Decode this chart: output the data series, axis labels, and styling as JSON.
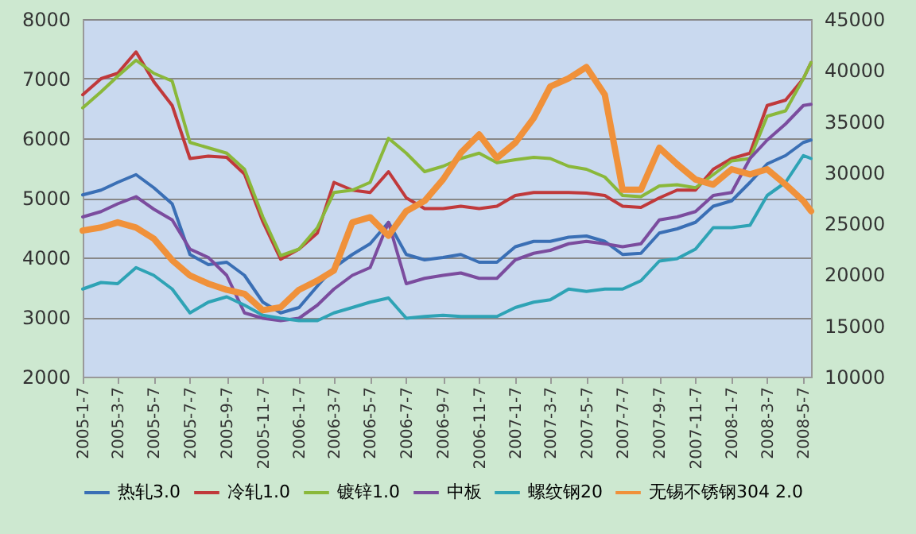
{
  "chart_data": {
    "type": "line",
    "x": [
      "2005-01-07",
      "2005-02-07",
      "2005-03-07",
      "2005-04-07",
      "2005-05-07",
      "2005-06-07",
      "2005-07-07",
      "2005-08-07",
      "2005-09-07",
      "2005-10-07",
      "2005-11-07",
      "2005-12-07",
      "2006-01-07",
      "2006-02-07",
      "2006-03-07",
      "2006-04-07",
      "2006-05-07",
      "2006-06-07",
      "2006-07-07",
      "2006-08-07",
      "2006-09-07",
      "2006-10-07",
      "2006-11-07",
      "2006-12-07",
      "2007-01-07",
      "2007-02-07",
      "2007-03-07",
      "2007-04-07",
      "2007-05-07",
      "2007-06-07",
      "2007-07-07",
      "2007-08-07",
      "2007-09-07",
      "2007-10-07",
      "2007-11-07",
      "2007-12-07",
      "2008-01-07",
      "2008-02-07",
      "2008-03-07",
      "2008-04-07",
      "2008-05-07",
      "2008-05-20"
    ],
    "series": [
      {
        "name": "热轧3.0",
        "color": "#3a6fb5",
        "values": [
          5050,
          5130,
          5260,
          5390,
          5170,
          4900,
          4050,
          3880,
          3920,
          3700,
          3250,
          3070,
          3160,
          3520,
          3830,
          4050,
          4230,
          4590,
          4050,
          3960,
          4000,
          4050,
          3920,
          3920,
          4180,
          4270,
          4270,
          4340,
          4360,
          4270,
          4050,
          4070,
          4410,
          4480,
          4590,
          4860,
          4950,
          5260,
          5570,
          5710,
          5930,
          5970
        ]
      },
      {
        "name": "冷轧1.0",
        "color": "#c0393b",
        "values": [
          6730,
          7000,
          7090,
          7450,
          6950,
          6550,
          5660,
          5700,
          5680,
          5400,
          4600,
          3970,
          4140,
          4410,
          5260,
          5130,
          5090,
          5440,
          5000,
          4820,
          4820,
          4860,
          4820,
          4860,
          5040,
          5090,
          5090,
          5090,
          5080,
          5040,
          4860,
          4840,
          5000,
          5130,
          5130,
          5480,
          5660,
          5750,
          6550,
          6640,
          7000,
          7270
        ]
      },
      {
        "name": "镀锌1.0",
        "color": "#8ab83a",
        "values": [
          6510,
          6780,
          7040,
          7310,
          7090,
          6960,
          5930,
          5840,
          5750,
          5480,
          4680,
          4030,
          4140,
          4500,
          5090,
          5130,
          5260,
          6000,
          5750,
          5440,
          5530,
          5660,
          5750,
          5590,
          5640,
          5680,
          5660,
          5530,
          5480,
          5350,
          5040,
          5020,
          5200,
          5220,
          5170,
          5390,
          5620,
          5660,
          6370,
          6460,
          7000,
          7270
        ]
      },
      {
        "name": "中板",
        "color": "#7b4c9e",
        "values": [
          4680,
          4770,
          4900,
          5020,
          4810,
          4630,
          4140,
          4000,
          3700,
          3070,
          2980,
          2940,
          2980,
          3200,
          3470,
          3700,
          3830,
          4590,
          3560,
          3650,
          3700,
          3740,
          3650,
          3650,
          3960,
          4070,
          4120,
          4230,
          4270,
          4230,
          4180,
          4230,
          4630,
          4680,
          4770,
          5040,
          5090,
          5660,
          5970,
          6240,
          6550,
          6570
        ]
      },
      {
        "name": "螺纹钢20",
        "color": "#2ea3b5",
        "values": [
          3470,
          3580,
          3560,
          3830,
          3700,
          3470,
          3070,
          3250,
          3340,
          3200,
          3030,
          2980,
          2940,
          2940,
          3070,
          3160,
          3250,
          3320,
          2980,
          3010,
          3030,
          3010,
          3010,
          3010,
          3160,
          3250,
          3290,
          3470,
          3430,
          3470,
          3470,
          3610,
          3940,
          3980,
          4140,
          4500,
          4500,
          4540,
          5040,
          5260,
          5710,
          5660
        ]
      },
      {
        "name": "无锡不锈钢304 2.0",
        "color": "#f0913a",
        "axis": "y2",
        "values": [
          24300,
          24600,
          25100,
          24600,
          23500,
          21400,
          19900,
          19100,
          18500,
          18100,
          16500,
          16800,
          18500,
          19400,
          20400,
          25100,
          25600,
          23800,
          26200,
          27200,
          29300,
          31900,
          33700,
          31400,
          32900,
          35300,
          38400,
          39200,
          40300,
          37600,
          28300,
          28300,
          32400,
          30800,
          29300,
          28800,
          30300,
          29800,
          30300,
          28800,
          27200,
          26200
        ]
      }
    ],
    "xlim": [
      "2005-01-07",
      "2008-05-20"
    ],
    "xticks": [
      {
        "value": "2005-01-07",
        "label": "2005-1-7"
      },
      {
        "value": "2005-03-07",
        "label": "2005-3-7"
      },
      {
        "value": "2005-05-07",
        "label": "2005-5-7"
      },
      {
        "value": "2005-07-07",
        "label": "2005-7-7"
      },
      {
        "value": "2005-09-07",
        "label": "2005-9-7"
      },
      {
        "value": "2005-11-07",
        "label": "2005-11-7"
      },
      {
        "value": "2006-01-07",
        "label": "2006-1-7"
      },
      {
        "value": "2006-03-07",
        "label": "2006-3-7"
      },
      {
        "value": "2006-05-07",
        "label": "2006-5-7"
      },
      {
        "value": "2006-07-07",
        "label": "2006-7-7"
      },
      {
        "value": "2006-09-07",
        "label": "2006-9-7"
      },
      {
        "value": "2006-11-07",
        "label": "2006-11-7"
      },
      {
        "value": "2007-01-07",
        "label": "2007-1-7"
      },
      {
        "value": "2007-03-07",
        "label": "2007-3-7"
      },
      {
        "value": "2007-05-07",
        "label": "2007-5-7"
      },
      {
        "value": "2007-07-07",
        "label": "2007-7-7"
      },
      {
        "value": "2007-09-07",
        "label": "2007-9-7"
      },
      {
        "value": "2007-11-07",
        "label": "2007-11-7"
      },
      {
        "value": "2008-01-07",
        "label": "2008-1-7"
      },
      {
        "value": "2008-03-07",
        "label": "2008-3-7"
      },
      {
        "value": "2008-05-07",
        "label": "2008-5-7"
      }
    ],
    "ylim": [
      2000,
      8000
    ],
    "yticks": [
      2000,
      3000,
      4000,
      5000,
      6000,
      7000,
      8000
    ],
    "y2lim": [
      10000,
      45000
    ],
    "y2ticks": [
      10000,
      15000,
      20000,
      25000,
      30000,
      35000,
      40000,
      45000
    ],
    "grid": "y",
    "legend": "bottom",
    "marker": "none",
    "line_style": "solid"
  }
}
